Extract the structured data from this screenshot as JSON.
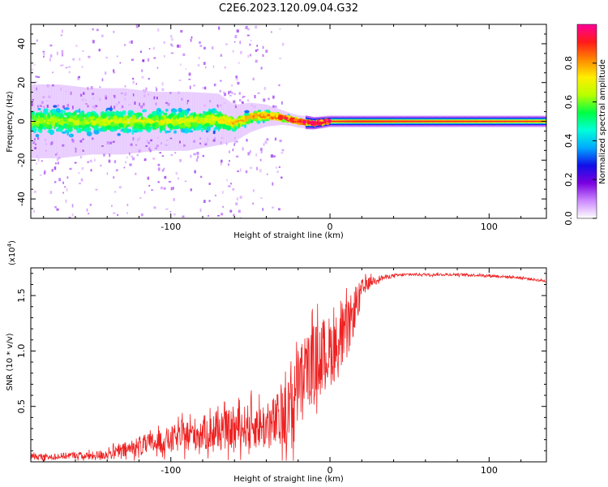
{
  "figure_title": "C2E6.2023.120.09.04.G32",
  "chart_data": [
    {
      "type": "heatmap",
      "panel": "spectrogram",
      "xlabel": "Height of straight line (km)",
      "ylabel": "Frequency (Hz)",
      "xlim": [
        -188,
        136
      ],
      "ylim": [
        -50,
        50
      ],
      "x_ticks": [
        -100,
        0,
        100
      ],
      "x_tick_labels": [
        "-100",
        "0",
        "100"
      ],
      "y_ticks": [
        -40,
        -20,
        0,
        20,
        40
      ],
      "y_tick_labels": [
        "-40",
        "-20",
        "0",
        "20",
        "40"
      ],
      "colorbar": {
        "label": "Normalized spectral amplitude",
        "range": [
          0,
          1
        ],
        "ticks": [
          0.0,
          0.2,
          0.4,
          0.6,
          0.8
        ],
        "tick_labels": [
          "0.0",
          "0.2",
          "0.4",
          "0.6",
          "0.8"
        ],
        "colormap": [
          "#ffffff",
          "#cc88ff",
          "#7a00e0",
          "#1010e8",
          "#00aaff",
          "#00ffd8",
          "#00ff44",
          "#b8ff00",
          "#ffee00",
          "#ff8800",
          "#ff1a1a",
          "#ff0099"
        ]
      },
      "ridge": {
        "x": [
          -188,
          -170,
          -150,
          -130,
          -110,
          -90,
          -70,
          -60,
          -50,
          -40,
          -30,
          -20,
          -10,
          0,
          10,
          20,
          40,
          80,
          136
        ],
        "center_hz": [
          0,
          0,
          0,
          0,
          0,
          0,
          1,
          -1,
          2,
          3,
          2,
          0,
          -1,
          0,
          0,
          0,
          0,
          0,
          0
        ],
        "spread_hz": [
          10,
          10,
          9,
          9,
          8,
          8,
          7,
          5,
          4,
          3,
          2,
          1.5,
          1.2,
          1,
          1,
          1,
          1,
          1,
          1
        ],
        "amplitude": [
          0.3,
          0.3,
          0.32,
          0.33,
          0.34,
          0.35,
          0.4,
          0.45,
          0.5,
          0.55,
          0.6,
          0.65,
          0.7,
          0.75,
          0.8,
          0.82,
          0.8,
          0.78,
          0.75
        ]
      },
      "scatter_extent_hz": {
        "x_from": -188,
        "x_to": -30,
        "max": 50
      }
    },
    {
      "type": "line",
      "panel": "snr",
      "xlabel": "Height of straight line (km)",
      "ylabel": "SNR (10 * v/v)",
      "y_multiplier_label": "(x10",
      "y_multiplier_exp": "4",
      "y_multiplier_close": ")",
      "xlim": [
        -188,
        136
      ],
      "ylim": [
        0,
        1.75
      ],
      "x_ticks": [
        -100,
        0,
        100
      ],
      "x_tick_labels": [
        "-100",
        "0",
        "100"
      ],
      "y_ticks": [
        0.5,
        1.0,
        1.5
      ],
      "y_tick_labels": [
        "0.5",
        "1.0",
        "1.5"
      ],
      "color": "#ee2222",
      "series": [
        {
          "x": [
            -188,
            -180,
            -170,
            -160,
            -150,
            -140,
            -130,
            -120,
            -110,
            -100,
            -90,
            -80,
            -70,
            -60,
            -50,
            -40,
            -35,
            -30,
            -25,
            -22,
            -20,
            -15,
            -10,
            -5,
            0,
            5,
            10,
            15,
            20,
            25,
            30,
            40,
            50,
            60,
            80,
            100,
            120,
            136
          ],
          "y": [
            0.05,
            0.04,
            0.05,
            0.06,
            0.05,
            0.07,
            0.1,
            0.14,
            0.17,
            0.2,
            0.24,
            0.26,
            0.27,
            0.3,
            0.33,
            0.32,
            0.35,
            0.38,
            0.45,
            0.5,
            0.7,
            0.8,
            0.9,
            0.95,
            1.0,
            1.05,
            1.15,
            1.35,
            1.55,
            1.62,
            1.65,
            1.68,
            1.69,
            1.69,
            1.69,
            1.68,
            1.66,
            1.63
          ],
          "noise": [
            0.03,
            0.03,
            0.03,
            0.03,
            0.04,
            0.05,
            0.07,
            0.09,
            0.1,
            0.12,
            0.14,
            0.16,
            0.17,
            0.18,
            0.2,
            0.22,
            0.25,
            0.28,
            0.35,
            0.42,
            0.35,
            0.35,
            0.35,
            0.35,
            0.32,
            0.3,
            0.28,
            0.2,
            0.1,
            0.05,
            0.03,
            0.015,
            0.012,
            0.012,
            0.012,
            0.012,
            0.012,
            0.012
          ]
        }
      ]
    }
  ]
}
